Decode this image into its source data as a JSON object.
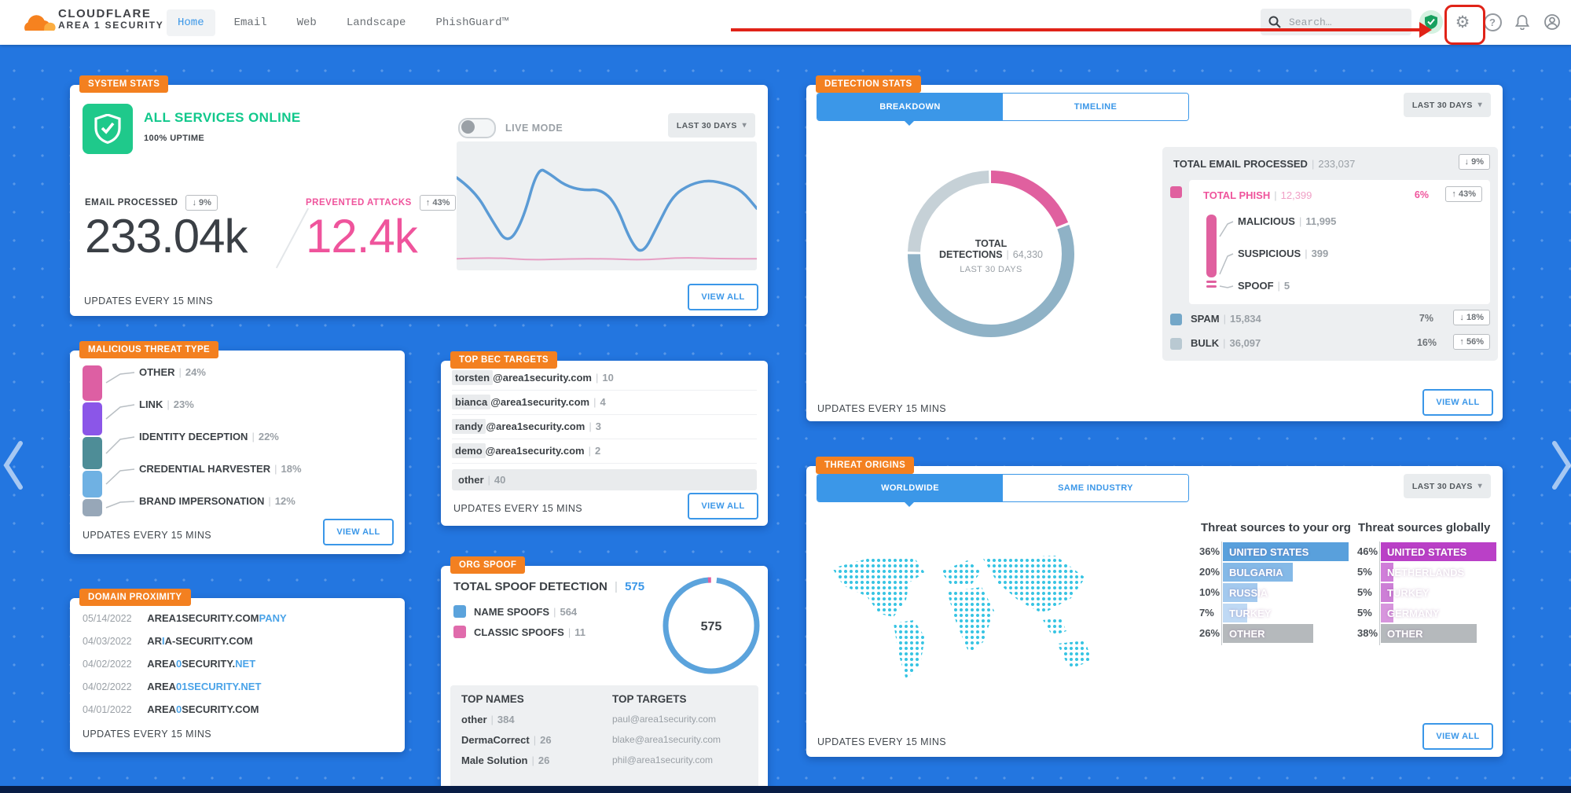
{
  "nav": {
    "brand_line1": "CLOUDFLARE",
    "brand_line2": "AREA 1 SECURITY",
    "items": [
      {
        "label": "Home"
      },
      {
        "label": "Email"
      },
      {
        "label": "Web"
      },
      {
        "label": "Landscape"
      },
      {
        "label": "PhishGuard™"
      }
    ],
    "search_placeholder": "Search…"
  },
  "common": {
    "view_all": "VIEW ALL",
    "updates": "UPDATES EVERY 15 MINS",
    "range": "LAST 30 DAYS",
    "sep": "|",
    "caret": "▾"
  },
  "system": {
    "badge": "SYSTEM STATS",
    "status": "ALL SERVICES ONLINE",
    "uptime": "100% UPTIME",
    "live_mode": "LIVE MODE",
    "email_label": "EMAIL PROCESSED",
    "email_delta": "↓ 9%",
    "email_value": "233.04k",
    "attacks_label": "PREVENTED ATTACKS",
    "attacks_delta": "↑ 43%",
    "attacks_value": "12.4k",
    "status_color": "#10c88b"
  },
  "malicious": {
    "badge": "MALICIOUS THREAT TYPE",
    "rows": [
      {
        "label": "OTHER",
        "pct_text": "24%",
        "pct": 24,
        "color": "#dd5fa3"
      },
      {
        "label": "LINK",
        "pct_text": "23%",
        "pct": 23,
        "color": "#8b56e8"
      },
      {
        "label": "IDENTITY DECEPTION",
        "pct_text": "22%",
        "pct": 22,
        "color": "#4e8d97"
      },
      {
        "label": "CREDENTIAL HARVESTER",
        "pct_text": "18%",
        "pct": 18,
        "color": "#6fb1e3"
      },
      {
        "label": "BRAND IMPERSONATION",
        "pct_text": "12%",
        "pct": 12,
        "color": "#97a7b8"
      }
    ]
  },
  "domain": {
    "badge": "DOMAIN PROXIMITY",
    "rows": [
      {
        "date": "05/14/2022",
        "s1": "AREA1SECURITY.COM",
        "s2": "PANY",
        "s3": "",
        "s4": ""
      },
      {
        "date": "04/03/2022",
        "s1": "AR",
        "s2": "I",
        "s3": "A-SECURITY.COM",
        "s4": ""
      },
      {
        "date": "04/02/2022",
        "s1": "AREA",
        "s2": "0",
        "s3": "SECURITY.",
        "s4": "NET"
      },
      {
        "date": "04/02/2022",
        "s1": "AREA",
        "s2": "01SECURITY.NET",
        "s3": "",
        "s4": ""
      },
      {
        "date": "04/01/2022",
        "s1": "AREA",
        "s2": "0",
        "s3": "SECURITY.COM",
        "s4": ""
      }
    ]
  },
  "bec": {
    "badge": "TOP BEC TARGETS",
    "rows": [
      {
        "hl": "torsten",
        "rest": "@area1security.com",
        "count": "10"
      },
      {
        "hl": "bianca",
        "rest": "@area1security.com",
        "count": "4"
      },
      {
        "hl": "randy",
        "rest": "@area1security.com",
        "count": "3"
      },
      {
        "hl": "demo",
        "rest": "@area1security.com",
        "count": "2"
      }
    ],
    "other_label": "other",
    "other_count": "40"
  },
  "spoof": {
    "badge": "ORG SPOOF",
    "title": "TOTAL SPOOF DETECTION",
    "total": "575",
    "legend": [
      {
        "label": "NAME SPOOFS",
        "count": "564",
        "color": "#5ba3dc"
      },
      {
        "label": "CLASSIC SPOOFS",
        "count": "11",
        "color": "#e06bac"
      }
    ],
    "donut_center": "575",
    "top_names_header": "TOP NAMES",
    "top_targets_header": "TOP TARGETS",
    "top_names": [
      {
        "name": "other",
        "count": "384"
      },
      {
        "name": "DermaCorrect",
        "count": "26"
      },
      {
        "name": "Male Solution",
        "count": "26"
      }
    ],
    "top_targets": [
      "paul@area1security.com",
      "blake@area1security.com",
      "phil@area1security.com"
    ]
  },
  "detection": {
    "badge": "DETECTION STATS",
    "tab1": "BREAKDOWN",
    "tab2": "TIMELINE",
    "center_label": "TOTAL DETECTIONS",
    "center_value": "64,330",
    "center_sub": "LAST 30 DAYS",
    "total_email_label": "TOTAL EMAIL PROCESSED",
    "total_email_value": "233,037",
    "total_email_delta": "↓ 9%",
    "phish": {
      "label": "TOTAL PHISH",
      "value": "12,399",
      "pct": "6%",
      "delta": "↑ 43%",
      "color": "#e0609f"
    },
    "sub": [
      {
        "label": "MALICIOUS",
        "value": "11,995"
      },
      {
        "label": "SUSPICIOUS",
        "value": "399"
      },
      {
        "label": "SPOOF",
        "value": "5"
      }
    ],
    "spam": {
      "label": "SPAM",
      "value": "15,834",
      "pct": "7%",
      "delta": "↓ 18%",
      "color": "#74a7c8"
    },
    "bulk": {
      "label": "BULK",
      "value": "36,097",
      "pct": "16%",
      "delta": "↑ 56%",
      "color": "#b9c9d2"
    }
  },
  "origins": {
    "badge": "THREAT ORIGINS",
    "tab1": "WORLDWIDE",
    "tab2": "SAME INDUSTRY",
    "org_header": "Threat sources to your org",
    "global_header": "Threat sources globally",
    "org": [
      {
        "pct": 36,
        "pct_text": "36%",
        "country": "UNITED STATES",
        "color": "#59a0dc"
      },
      {
        "pct": 20,
        "pct_text": "20%",
        "country": "BULGARIA",
        "color": "#84b9e7"
      },
      {
        "pct": 10,
        "pct_text": "10%",
        "country": "RUSSIA",
        "color": "#a3c9ee"
      },
      {
        "pct": 7,
        "pct_text": "7%",
        "country": "TURKEY",
        "color": "#bfd9f4"
      },
      {
        "pct": 26,
        "pct_text": "26%",
        "country": "OTHER",
        "color": "#b5b9bc"
      }
    ],
    "global": [
      {
        "pct": 46,
        "pct_text": "46%",
        "country": "UNITED STATES",
        "color": "#ba40c7"
      },
      {
        "pct": 5,
        "pct_text": "5%",
        "country": "NETHERLANDS",
        "color": "#d07ed9"
      },
      {
        "pct": 5,
        "pct_text": "5%",
        "country": "TURKEY",
        "color": "#cd7fd6"
      },
      {
        "pct": 5,
        "pct_text": "5%",
        "country": "GERMANY",
        "color": "#d795dd"
      },
      {
        "pct": 38,
        "pct_text": "38%",
        "country": "OTHER",
        "color": "#b5b9bc"
      }
    ]
  },
  "chart_data": [
    {
      "type": "line",
      "title": "System stats — last 30 days sparkline",
      "x_range": [
        0,
        100
      ],
      "y_range": [
        0,
        100
      ],
      "grid": false,
      "series": [
        {
          "name": "email processed",
          "color": "#5b9bd5",
          "points": [
            [
              0,
              28
            ],
            [
              6,
              38
            ],
            [
              12,
              62
            ],
            [
              17,
              80
            ],
            [
              22,
              62
            ],
            [
              27,
              20
            ],
            [
              31,
              25
            ],
            [
              36,
              34
            ],
            [
              42,
              38
            ],
            [
              48,
              37
            ],
            [
              53,
              48
            ],
            [
              58,
              78
            ],
            [
              62,
              88
            ],
            [
              67,
              65
            ],
            [
              72,
              42
            ],
            [
              78,
              33
            ],
            [
              84,
              30
            ],
            [
              90,
              33
            ],
            [
              95,
              38
            ],
            [
              100,
              52
            ]
          ]
        },
        {
          "name": "prevented attacks",
          "color": "#e79ec4",
          "points": [
            [
              0,
              91
            ],
            [
              12,
              90
            ],
            [
              25,
              92
            ],
            [
              38,
              91
            ],
            [
              50,
              91
            ],
            [
              62,
              92
            ],
            [
              75,
              90
            ],
            [
              88,
              91
            ],
            [
              100,
              91
            ]
          ]
        }
      ]
    },
    {
      "type": "bar",
      "title": "Malicious threat type breakdown (%)",
      "categories": [
        "OTHER",
        "LINK",
        "IDENTITY DECEPTION",
        "CREDENTIAL HARVESTER",
        "BRAND IMPERSONATION"
      ],
      "values": [
        24,
        23,
        22,
        18,
        12
      ],
      "colors": [
        "#dd5fa3",
        "#8b56e8",
        "#4e8d97",
        "#6fb1e3",
        "#97a7b8"
      ]
    },
    {
      "type": "pie",
      "title": "TOTAL DETECTIONS",
      "total": 64330,
      "values": [
        {
          "label": "TOTAL PHISH",
          "value": 12399
        },
        {
          "label": "SPAM",
          "value": 15834
        },
        {
          "label": "BULK",
          "value": 36097
        }
      ],
      "segments": [
        {
          "pct": 19.3,
          "color": "#e0609f"
        },
        {
          "pct": 56.1,
          "color": "#8fb2c6"
        },
        {
          "pct": 24.6,
          "color": "#c6d1d7"
        }
      ]
    },
    {
      "type": "pie",
      "title": "TOTAL SPOOF DETECTION",
      "total": 575,
      "values": [
        {
          "label": "CLASSIC SPOOFS",
          "value": 11
        },
        {
          "label": "NAME SPOOFS",
          "value": 564
        }
      ],
      "segments": [
        {
          "pct": 1.9,
          "color": "#e0609f"
        },
        {
          "pct": 98.1,
          "color": "#5ba3dc"
        }
      ]
    },
    {
      "type": "bar",
      "title": "Threat origins (%)",
      "groups": [
        {
          "name": "Threat sources to your org",
          "categories": [
            "UNITED STATES",
            "BULGARIA",
            "RUSSIA",
            "TURKEY",
            "OTHER"
          ],
          "values": [
            36,
            20,
            10,
            7,
            26
          ]
        },
        {
          "name": "Threat sources globally",
          "categories": [
            "UNITED STATES",
            "NETHERLANDS",
            "TURKEY",
            "GERMANY",
            "OTHER"
          ],
          "values": [
            46,
            5,
            5,
            5,
            38
          ]
        }
      ]
    }
  ]
}
